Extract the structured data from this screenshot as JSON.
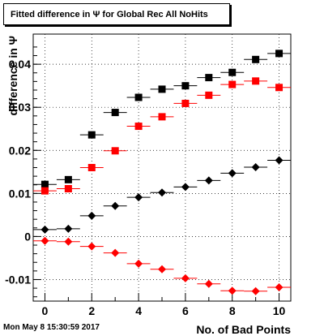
{
  "title": "Fitted difference in  Ψ  for Global Rec All NoHits",
  "timestamp": "Mon May  8 15:30:59 2017",
  "chart_data": {
    "type": "scatter",
    "title": "Fitted difference in  Ψ  for Global Rec All NoHits",
    "xlabel": "No. of Bad Points",
    "ylabel": "difference in  Ψ",
    "xlim": [
      -0.5,
      10.5
    ],
    "ylim": [
      -0.015,
      0.047
    ],
    "x_ticks": [
      "0",
      "2",
      "4",
      "6",
      "8",
      "10"
    ],
    "y_ticks": [
      "-0.01",
      "0",
      "0.01",
      "0.02",
      "0.03",
      "0.04"
    ],
    "grid": true,
    "x": [
      0,
      1,
      2,
      3,
      4,
      5,
      6,
      7,
      8,
      9,
      10
    ],
    "series": [
      {
        "marker": "square",
        "color": "#000000",
        "values": [
          0.0121,
          0.0132,
          0.0236,
          0.0288,
          0.0323,
          0.0342,
          0.035,
          0.0369,
          0.0381,
          0.0411,
          0.0425
        ]
      },
      {
        "marker": "square",
        "color": "#ff0000",
        "values": [
          0.0106,
          0.0111,
          0.016,
          0.0199,
          0.0256,
          0.0278,
          0.0309,
          0.0328,
          0.0353,
          0.0361,
          0.0346
        ]
      },
      {
        "marker": "diamond",
        "color": "#000000",
        "values": [
          0.0016,
          0.0018,
          0.0048,
          0.0071,
          0.0091,
          0.0102,
          0.0115,
          0.013,
          0.0147,
          0.0161,
          0.0177
        ]
      },
      {
        "marker": "diamond",
        "color": "#ff0000",
        "values": [
          -0.001,
          -0.0012,
          -0.0023,
          -0.0038,
          -0.0063,
          -0.0076,
          -0.0097,
          -0.011,
          -0.0126,
          -0.0127,
          -0.0118
        ]
      }
    ]
  }
}
